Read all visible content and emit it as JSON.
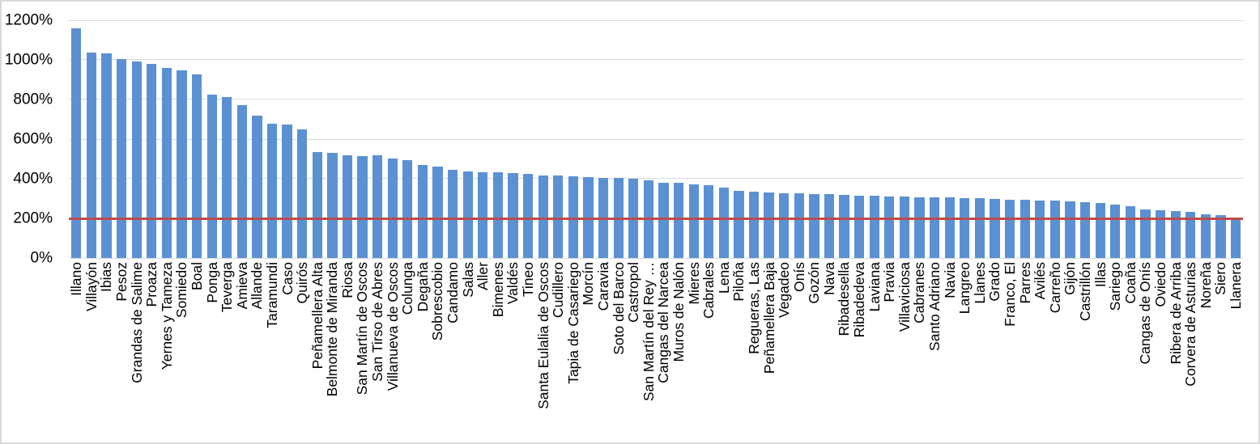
{
  "chart_data": {
    "type": "bar",
    "title": "",
    "xlabel": "",
    "ylabel": "",
    "ylim": [
      0,
      1200
    ],
    "grid": "horizontal",
    "legend": "none",
    "y_ticks": {
      "values": [
        0,
        200,
        400,
        600,
        800,
        1000,
        1200
      ],
      "labels": [
        "0%",
        "200%",
        "400%",
        "600%",
        "800%",
        "1000%",
        "1200%"
      ]
    },
    "bar_color": "#5B91D2",
    "gridline_color": "#D9D9D9",
    "reference_line": {
      "value": 200,
      "color": "#BE4B48",
      "thickness_px": 3
    },
    "categories": [
      "Illano",
      "Villayón",
      "Ibias",
      "Pesoz",
      "Grandas de Salime",
      "Proaza",
      "Yernes y Tameza",
      "Somiedo",
      "Boal",
      "Ponga",
      "Teverga",
      "Amieva",
      "Allande",
      "Taramundi",
      "Caso",
      "Quirós",
      "Peñamellera Alta",
      "Belmonte de Miranda",
      "Riosa",
      "San Martín de Oscos",
      "San Tirso de Abres",
      "Villanueva de Oscos",
      "Colunga",
      "Degaña",
      "Sobrescobio",
      "Candamo",
      "Salas",
      "Aller",
      "Bimenes",
      "Valdés",
      "Tineo",
      "Santa Eulalia de Oscos",
      "Cudillero",
      "Tapia de Casariego",
      "Morcín",
      "Caravia",
      "Soto del Barco",
      "Castropol",
      "San Martín del Rey …",
      "Cangas del Narcea",
      "Muros de Nalón",
      "Mieres",
      "Cabrales",
      "Lena",
      "Piloña",
      "Regueras, Las",
      "Peñamellera Baja",
      "Vegadeo",
      "Onís",
      "Gozón",
      "Nava",
      "Ribadesella",
      "Ribadedeva",
      "Laviana",
      "Pravia",
      "Villaviciosa",
      "Cabranes",
      "Santo Adriano",
      "Navia",
      "Langreo",
      "Llanes",
      "Grado",
      "Franco, El",
      "Parres",
      "Avilés",
      "Carreño",
      "Gijón",
      "Castrillón",
      "Illas",
      "Sariego",
      "Coaña",
      "Cangas de Onís",
      "Oviedo",
      "Ribera de Arriba",
      "Corvera de Asturias",
      "Noreña",
      "Siero",
      "Llanera"
    ],
    "values": [
      1160,
      1035,
      1032,
      1004,
      992,
      979,
      958,
      945,
      925,
      825,
      814,
      770,
      719,
      678,
      673,
      649,
      533,
      529,
      520,
      516,
      517,
      503,
      492,
      471,
      462,
      444,
      437,
      433,
      432,
      428,
      424,
      417,
      415,
      412,
      409,
      406,
      403,
      399,
      390,
      380,
      378,
      372,
      366,
      356,
      339,
      335,
      331,
      328,
      326,
      324,
      321,
      320,
      315,
      314,
      312,
      310,
      308,
      306,
      305,
      304,
      302,
      296,
      295,
      292,
      291,
      290,
      287,
      281,
      277,
      270,
      261,
      244,
      239,
      235,
      231,
      219,
      217,
      197
    ]
  }
}
